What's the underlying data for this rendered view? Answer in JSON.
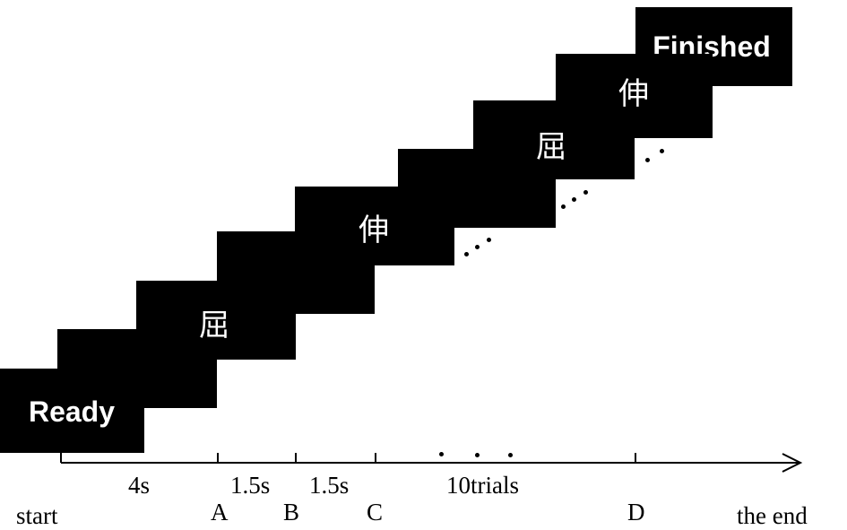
{
  "cards": [
    {
      "id": "ready",
      "label": "Ready"
    },
    {
      "id": "flex-1",
      "label": "屈"
    },
    {
      "id": "extend-1",
      "label": "伸"
    },
    {
      "id": "flex-2",
      "label": "屈"
    },
    {
      "id": "extend-2",
      "label": "伸"
    },
    {
      "id": "finished",
      "label": "Finished"
    }
  ],
  "timeline": {
    "start": "start",
    "end": "the end",
    "durations": [
      "4s",
      "1.5s",
      "1.5s",
      "10trials"
    ],
    "markers": [
      "A",
      "B",
      "C",
      "D"
    ]
  }
}
